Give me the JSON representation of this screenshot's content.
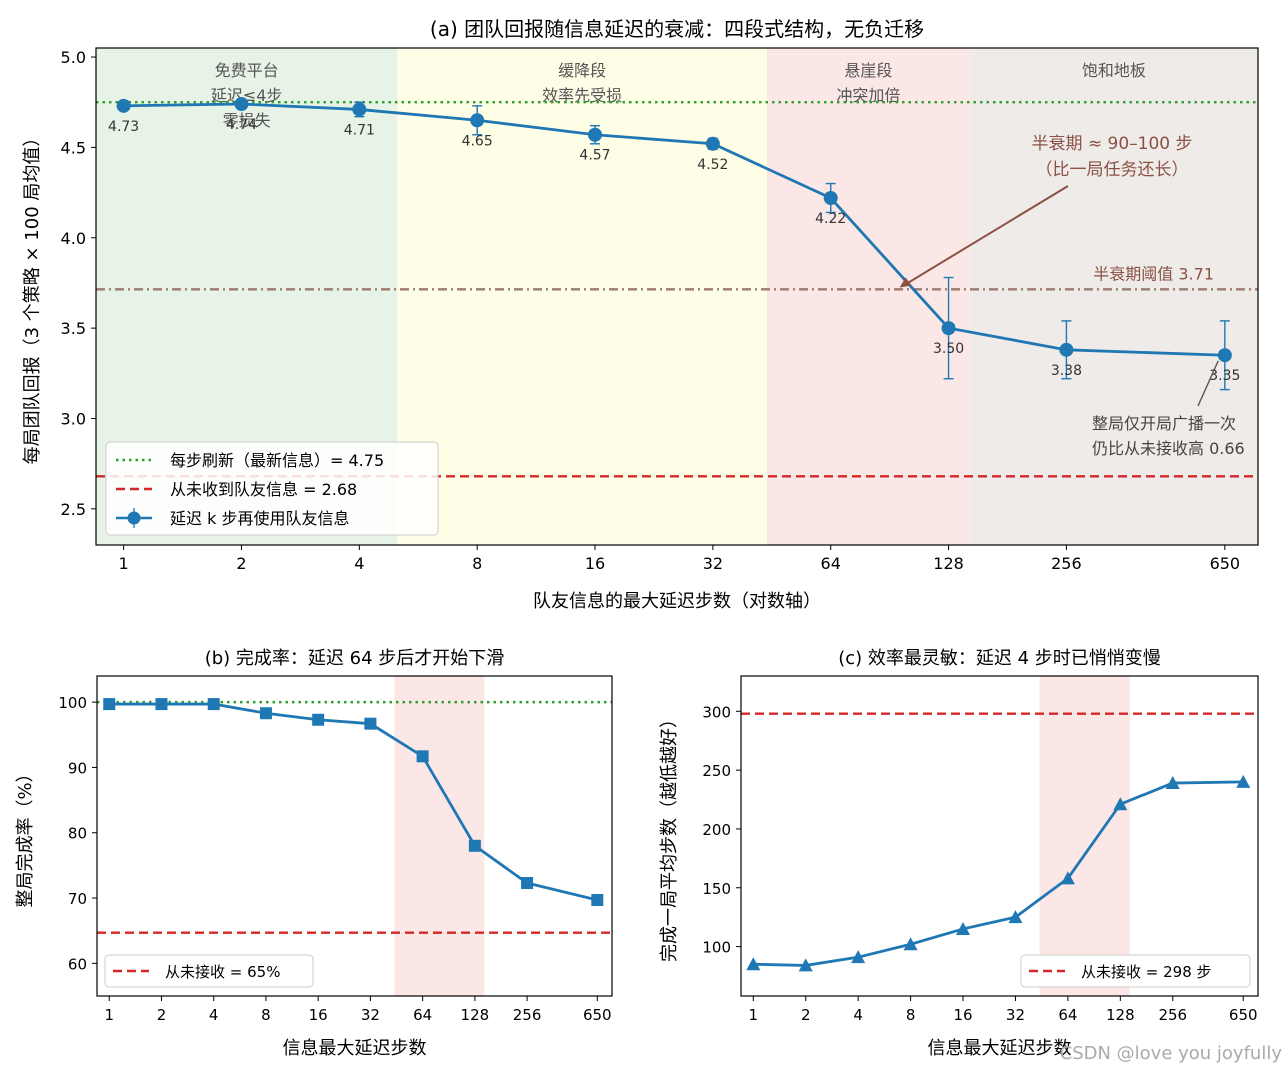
{
  "chart_data": [
    {
      "id": "a",
      "type": "line",
      "title": "(a) 团队回报随信息延迟的衰减：四段式结构，无负迁移",
      "xlabel": "队友信息的最大延迟步数（对数轴）",
      "ylabel": "每局团队回报（3 个策略 × 100 局均值）",
      "xscale": "log",
      "xlim": [
        0.85,
        790
      ],
      "ylim": [
        2.3,
        5.05
      ],
      "x": [
        1,
        2,
        4,
        8,
        16,
        32,
        64,
        128,
        256,
        650
      ],
      "xticks": [
        "1",
        "2",
        "4",
        "8",
        "16",
        "32",
        "64",
        "128",
        "256",
        "650"
      ],
      "yticks": [
        "2.5",
        "3.0",
        "3.5",
        "4.0",
        "4.5",
        "5.0"
      ],
      "series": [
        {
          "name": "延迟 k 步再使用队友信息",
          "values": [
            4.73,
            4.74,
            4.71,
            4.65,
            4.57,
            4.52,
            4.22,
            3.5,
            3.38,
            3.35
          ],
          "errors": [
            0.02,
            0.02,
            0.04,
            0.08,
            0.05,
            0.03,
            0.08,
            0.28,
            0.16,
            0.19
          ],
          "value_labels": [
            "4.73",
            "4.74",
            "4.71",
            "4.65",
            "4.57",
            "4.52",
            "4.22",
            "3.50",
            "3.38",
            "3.35"
          ],
          "color": "#1f77b4"
        }
      ],
      "reference_lines": [
        {
          "name": "每步刷新（最新信息）= 4.75",
          "y": 4.75,
          "style": "dotted",
          "color": "#2ca02c"
        },
        {
          "name": "从未收到队友信息 = 2.68",
          "y": 2.68,
          "style": "dashed",
          "color": "#d62728"
        },
        {
          "label": "半衰期阈值 3.71",
          "y": 3.715,
          "style": "dashdot",
          "color": "#9c7a70"
        }
      ],
      "zones": [
        {
          "label": "免费平台\n延迟≤4步\n零损失",
          "x0": 0.85,
          "x1": 5,
          "color": "#e7f3e6"
        },
        {
          "label": "缓降段\n效率先受损",
          "x0": 5,
          "x1": 44,
          "color": "#fefde6"
        },
        {
          "label": "悬崖段\n冲突加倍",
          "x0": 44,
          "x1": 145,
          "color": "#fbe8e6"
        },
        {
          "label": "饱和地板",
          "x0": 145,
          "x1": 790,
          "color": "#efebe8"
        }
      ],
      "annotations": [
        {
          "text": "半衰期 ≈ 90–100 步\n（比一局任务还长）",
          "arrow_to": [
            96,
            3.725
          ]
        },
        {
          "text": "整局仅开局广播一次\n仍比从未接收高 0.66",
          "arrow_to": [
            640,
            3.33
          ]
        }
      ],
      "legend": "lower-left"
    },
    {
      "id": "b",
      "type": "line",
      "title": "(b) 完成率：延迟 64 步后才开始下滑",
      "xlabel": "信息最大延迟步数",
      "ylabel": "整局完成率（%）",
      "xscale": "log",
      "xlim": [
        0.85,
        790
      ],
      "ylim": [
        55,
        104
      ],
      "x": [
        1,
        2,
        4,
        8,
        16,
        32,
        64,
        128,
        256,
        650
      ],
      "xticks": [
        "1",
        "2",
        "4",
        "8",
        "16",
        "32",
        "64",
        "128",
        "256",
        "650"
      ],
      "yticks": [
        "60",
        "70",
        "80",
        "90",
        "100"
      ],
      "series": [
        {
          "values": [
            99.7,
            99.7,
            99.7,
            98.3,
            97.3,
            96.7,
            91.7,
            78.0,
            72.3,
            69.7
          ],
          "color": "#1f77b4",
          "marker": "square"
        }
      ],
      "reference_lines": [
        {
          "y": 100,
          "style": "dotted",
          "color": "#2ca02c"
        },
        {
          "name": "从未接收 = 65%",
          "y": 64.7,
          "style": "dashed",
          "color": "#d62728"
        }
      ],
      "shaded": {
        "x0": 44,
        "x1": 145,
        "color": "#fbe8e6"
      },
      "legend": "lower-left"
    },
    {
      "id": "c",
      "type": "line",
      "title": "(c) 效率最灵敏：延迟 4 步时已悄悄变慢",
      "xlabel": "信息最大延迟步数",
      "ylabel": "完成一局平均步数（越低越好）",
      "xscale": "log",
      "xlim": [
        0.85,
        790
      ],
      "ylim": [
        58,
        330
      ],
      "x": [
        1,
        2,
        4,
        8,
        16,
        32,
        64,
        128,
        256,
        650
      ],
      "xticks": [
        "1",
        "2",
        "4",
        "8",
        "16",
        "32",
        "64",
        "128",
        "256",
        "650"
      ],
      "yticks": [
        "100",
        "150",
        "200",
        "250",
        "300"
      ],
      "series": [
        {
          "values": [
            85,
            84,
            91,
            102,
            115,
            125,
            158,
            221,
            239,
            240
          ],
          "color": "#1f77b4",
          "marker": "triangle"
        }
      ],
      "reference_lines": [
        {
          "name": "从未接收 = 298 步",
          "y": 298,
          "style": "dashed",
          "color": "#d62728"
        }
      ],
      "shaded": {
        "x0": 44,
        "x1": 145,
        "color": "#fbe8e6"
      },
      "legend": "lower-right"
    }
  ],
  "watermark": "CSDN @love you joyfully"
}
